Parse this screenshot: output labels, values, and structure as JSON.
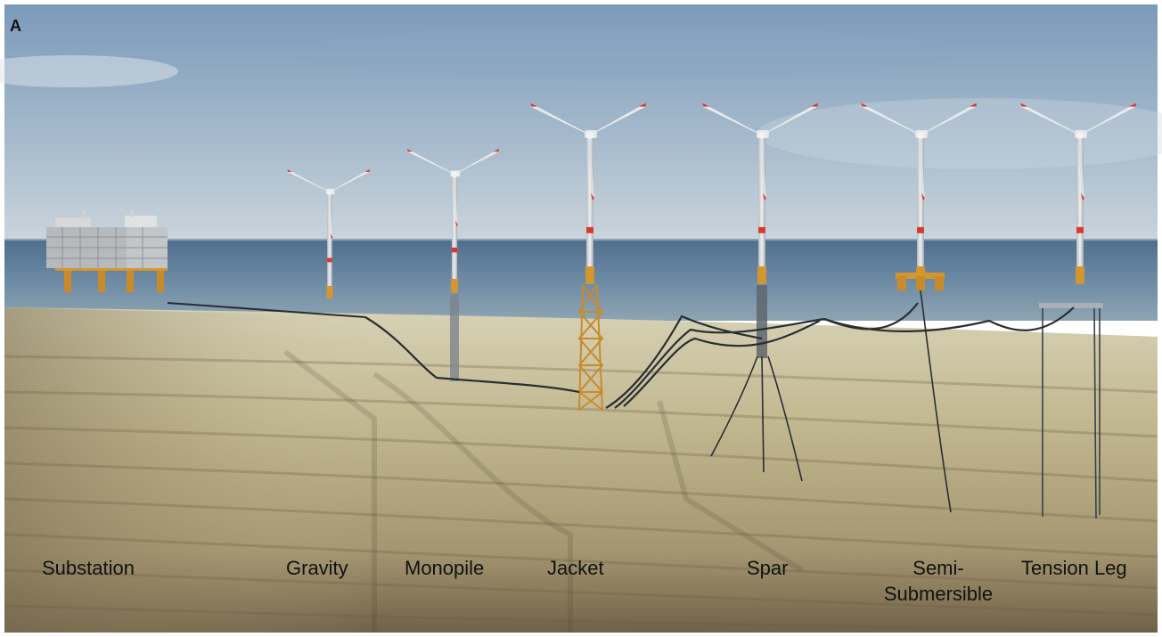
{
  "figure": {
    "panel_letter": "A",
    "labels": {
      "substation": "Substation",
      "gravity": "Gravity",
      "monopile": "Monopile",
      "jacket": "Jacket",
      "spar": "Spar",
      "semi_submersible_line1": "Semi-",
      "semi_submersible_line2": "Submersible",
      "tension_leg": "Tension Leg"
    },
    "colors": {
      "sky_top": "#7e9cbc",
      "sky_bottom": "#c7d3dc",
      "sea": "#5d7c98",
      "seabed_light": "#c9c09a",
      "seabed_dark": "#6e6046",
      "tower": "#d9dcdf",
      "tower_red": "#d63a2a",
      "foundation_yellow": "#d6962e",
      "cable": "#2a2e32",
      "substation": "#c9cbcd"
    }
  }
}
